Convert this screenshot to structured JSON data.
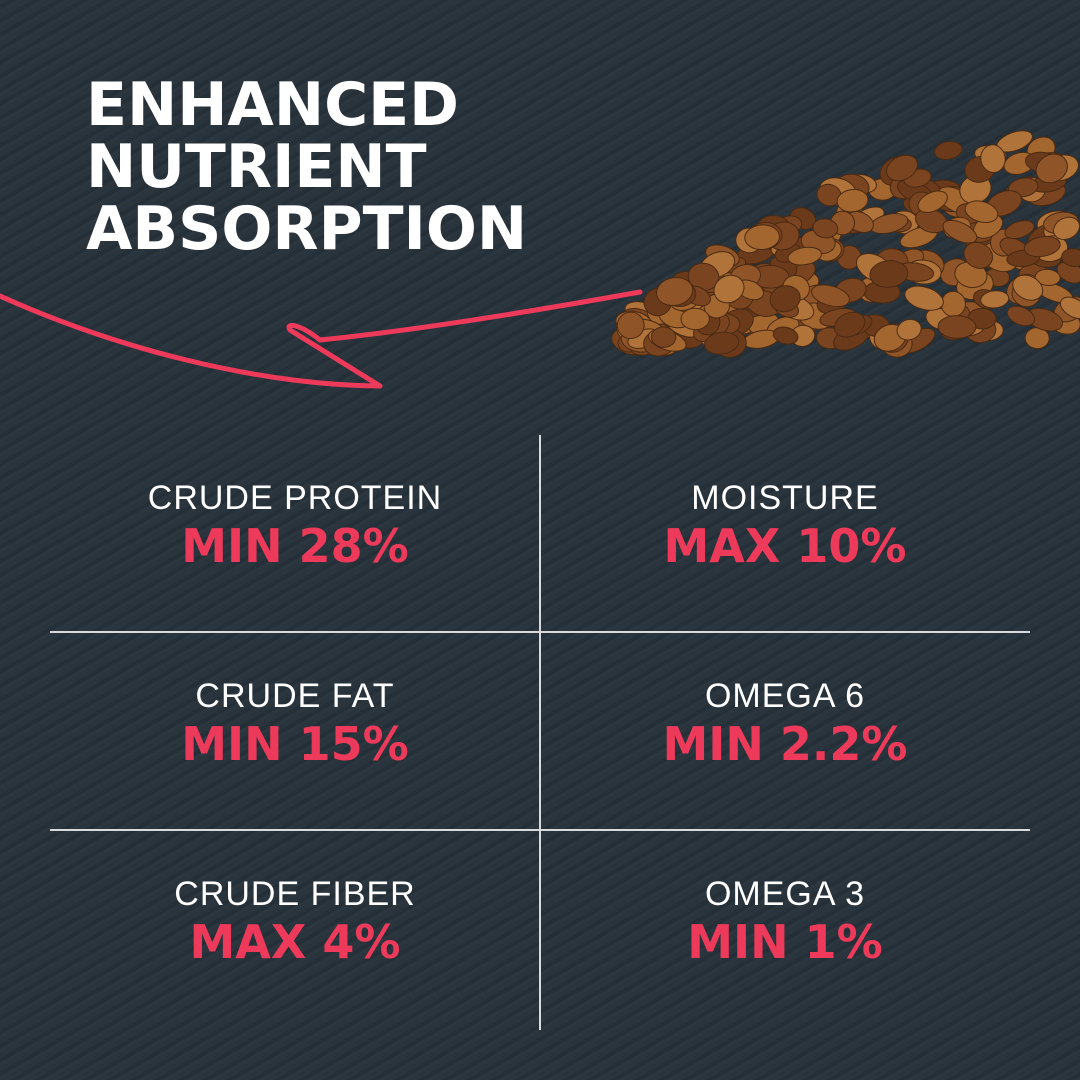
{
  "headline": [
    "ENHANCED",
    "NUTRIENT",
    "ABSORPTION"
  ],
  "colors": {
    "background": "#27313a",
    "accent": "#ee3a5a",
    "text": "#ffffff",
    "kibble": "#8a5227"
  },
  "image": "dog-kibble-pile",
  "nutrients": [
    {
      "label": "CRUDE PROTEIN",
      "value": "MIN 28%"
    },
    {
      "label": "MOISTURE",
      "value": "MAX 10%"
    },
    {
      "label": "CRUDE FAT",
      "value": "MIN 15%"
    },
    {
      "label": "OMEGA 6",
      "value": "MIN 2.2%"
    },
    {
      "label": "CRUDE FIBER",
      "value": "MAX 4%"
    },
    {
      "label": "OMEGA 3",
      "value": "MIN 1%"
    }
  ]
}
